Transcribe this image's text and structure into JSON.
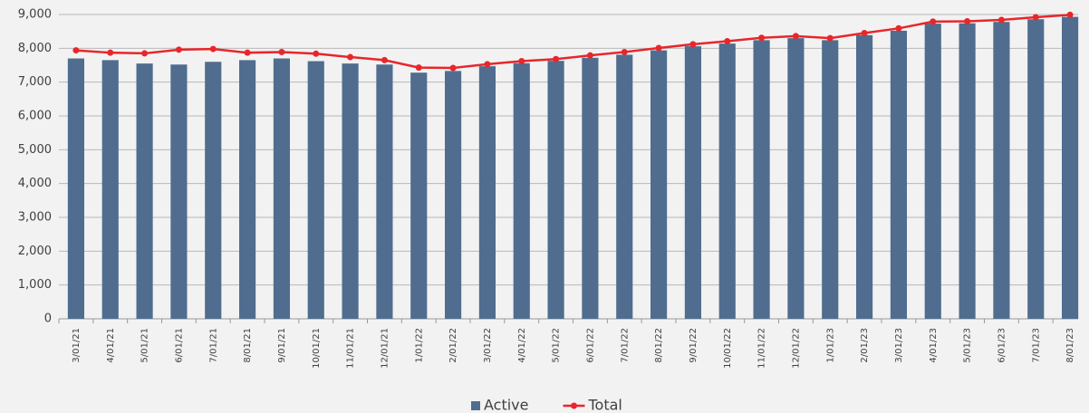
{
  "chart_data": {
    "type": "bar-line",
    "categories": [
      "3/01/21",
      "4/01/21",
      "5/01/21",
      "6/01/21",
      "7/01/21",
      "8/01/21",
      "9/01/21",
      "10/01/21",
      "11/01/21",
      "12/01/21",
      "1/01/22",
      "2/01/22",
      "3/01/22",
      "4/01/22",
      "5/01/22",
      "6/01/22",
      "7/01/22",
      "8/01/22",
      "9/01/22",
      "10/01/22",
      "11/01/22",
      "12/01/22",
      "1/01/23",
      "2/01/23",
      "3/01/23",
      "4/01/23",
      "5/01/23",
      "6/01/23",
      "7/01/23",
      "8/01/23"
    ],
    "series": [
      {
        "name": "Active",
        "type": "bar",
        "color": "#506d8f",
        "values": [
          7700,
          7650,
          7550,
          7520,
          7600,
          7650,
          7700,
          7620,
          7550,
          7520,
          7280,
          7330,
          7470,
          7560,
          7630,
          7720,
          7810,
          7940,
          8060,
          8140,
          8240,
          8300,
          8240,
          8390,
          8520,
          8730,
          8740,
          8780,
          8860,
          8930
        ]
      },
      {
        "name": "Total",
        "type": "line",
        "color": "#e8262b",
        "values": [
          7940,
          7870,
          7850,
          7960,
          7980,
          7870,
          7890,
          7840,
          7740,
          7650,
          7430,
          7420,
          7530,
          7620,
          7680,
          7790,
          7890,
          8010,
          8120,
          8210,
          8310,
          8360,
          8300,
          8450,
          8590,
          8790,
          8800,
          8840,
          8920,
          8990
        ]
      }
    ],
    "ylim": [
      0,
      9000
    ],
    "yticks": [
      0,
      {
        "value": 1000,
        "label": "1,000"
      },
      {
        "value": 2000,
        "label": "2,000"
      },
      {
        "value": 3000,
        "label": "3,000"
      },
      {
        "value": 4000,
        "label": "4,000"
      },
      {
        "value": 5000,
        "label": "5,000"
      },
      {
        "value": 6000,
        "label": "6,000"
      },
      {
        "value": 7000,
        "label": "7,000"
      },
      {
        "value": 8000,
        "label": "8,000"
      },
      {
        "value": 9000,
        "label": "9,000"
      }
    ],
    "grid": true,
    "legend": "bottom"
  }
}
